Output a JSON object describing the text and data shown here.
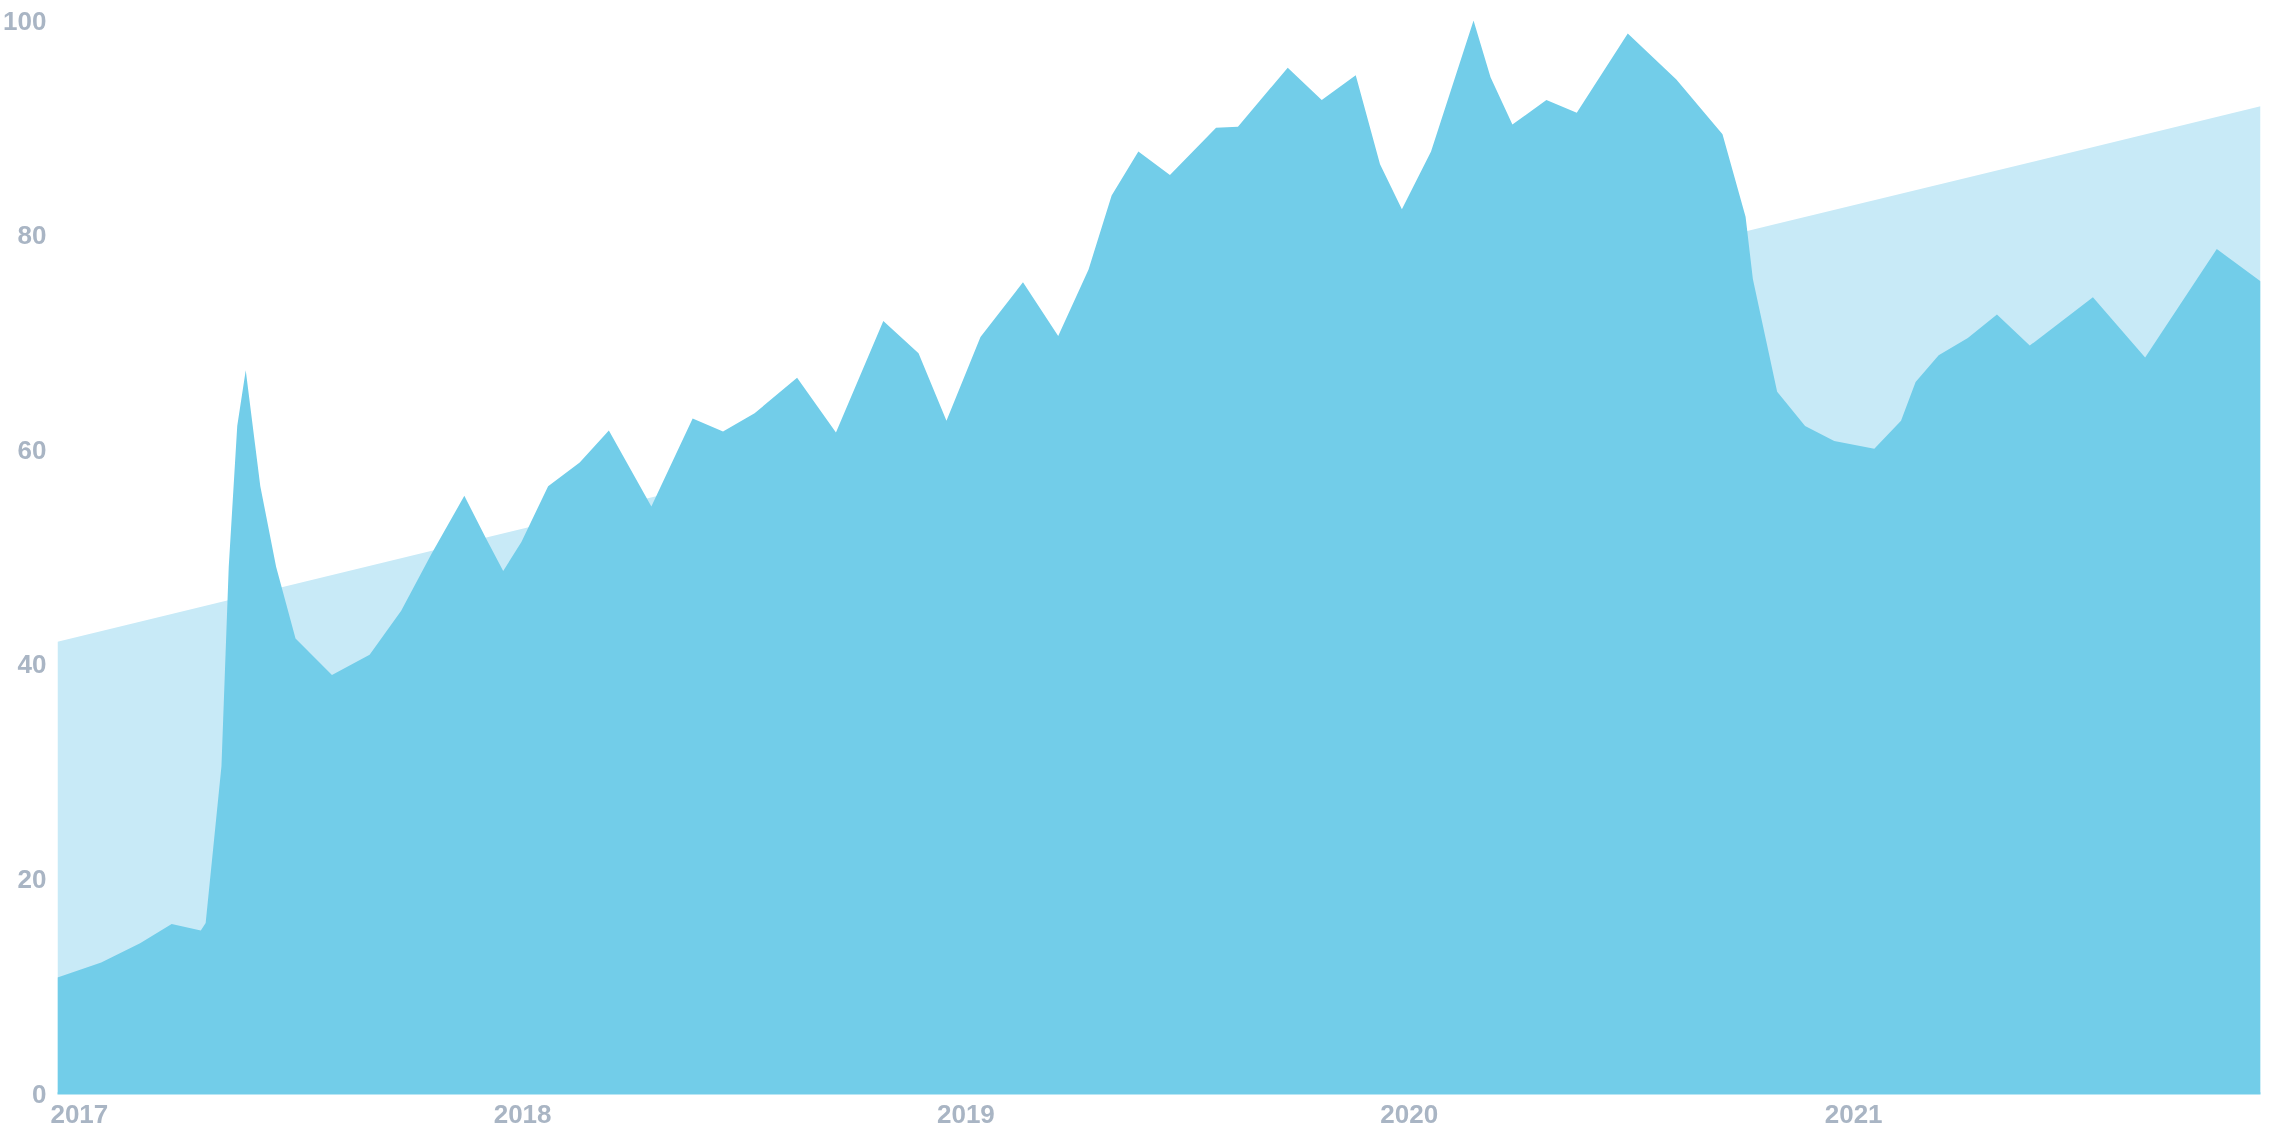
{
  "chart_data": {
    "type": "area",
    "xlim": [
      "2016-12-14",
      "2021-12-02"
    ],
    "ylim": [
      0,
      100
    ],
    "xticks": [
      {
        "value": "2017-01-01",
        "label": "2017"
      },
      {
        "value": "2018-01-01",
        "label": "2018"
      },
      {
        "value": "2019-01-01",
        "label": "2019"
      },
      {
        "value": "2020-01-01",
        "label": "2020"
      },
      {
        "value": "2021-01-01",
        "label": "2021"
      }
    ],
    "yticks": [
      0,
      20,
      40,
      60,
      80,
      100
    ],
    "grid": false,
    "series": [
      {
        "color": "#c8eaf7",
        "x": [
          "2016-12-14",
          "2021-12-02"
        ],
        "values": [
          42.1,
          92.0
        ]
      },
      {
        "color": "#72cde9",
        "x": [
          "2016-12-14",
          "2017-01-19",
          "2017-02-20",
          "2017-03-18",
          "2017-04-11",
          "2017-04-15",
          "2017-04-28",
          "2017-05-04",
          "2017-05-11",
          "2017-05-18",
          "2017-05-30",
          "2017-06-12",
          "2017-06-28",
          "2017-07-28",
          "2017-08-28",
          "2017-09-23",
          "2017-10-18",
          "2017-11-14",
          "2017-12-02",
          "2017-12-16",
          "2017-12-31",
          "2018-01-22",
          "2018-02-17",
          "2018-03-13",
          "2018-04-17",
          "2018-05-21",
          "2018-06-15",
          "2018-07-11",
          "2018-08-15",
          "2018-09-16",
          "2018-10-25",
          "2018-11-23",
          "2018-12-16",
          "2019-01-13",
          "2019-02-17",
          "2019-03-18",
          "2019-04-12",
          "2019-05-01",
          "2019-05-23",
          "2019-06-18",
          "2019-07-26",
          "2019-08-13",
          "2019-09-23",
          "2019-10-21",
          "2019-11-18",
          "2019-12-08",
          "2019-12-26",
          "2020-01-19",
          "2020-02-23",
          "2020-03-08",
          "2020-03-26",
          "2020-04-23",
          "2020-05-18",
          "2020-06-29",
          "2020-08-08",
          "2020-09-15",
          "2020-10-04",
          "2020-10-10",
          "2020-10-30",
          "2020-11-22",
          "2020-12-16",
          "2021-01-18",
          "2021-02-09",
          "2021-02-21",
          "2021-03-12",
          "2021-04-05",
          "2021-04-29",
          "2021-05-26",
          "2021-07-17",
          "2021-08-29",
          "2021-10-27",
          "2021-12-02"
        ],
        "values": [
          10.8,
          12.2,
          14.0,
          15.8,
          15.2,
          15.9,
          30.5,
          49.1,
          62.2,
          67.4,
          56.6,
          49.1,
          42.4,
          39.0,
          40.9,
          45.0,
          50.3,
          55.7,
          51.7,
          48.7,
          51.4,
          56.6,
          58.8,
          61.8,
          54.7,
          62.9,
          61.7,
          63.4,
          66.7,
          61.6,
          72.0,
          69.0,
          62.7,
          70.5,
          75.6,
          70.6,
          76.8,
          83.7,
          87.8,
          85.6,
          90.0,
          90.1,
          95.6,
          92.6,
          94.9,
          86.6,
          82.4,
          87.8,
          100,
          94.7,
          90.3,
          92.6,
          91.4,
          98.8,
          94.5,
          89.4,
          81.7,
          75.9,
          65.4,
          62.2,
          60.8,
          60.1,
          62.7,
          66.3,
          68.8,
          70.4,
          72.6,
          69.7,
          74.2,
          68.6,
          78.7,
          75.7
        ]
      }
    ]
  }
}
